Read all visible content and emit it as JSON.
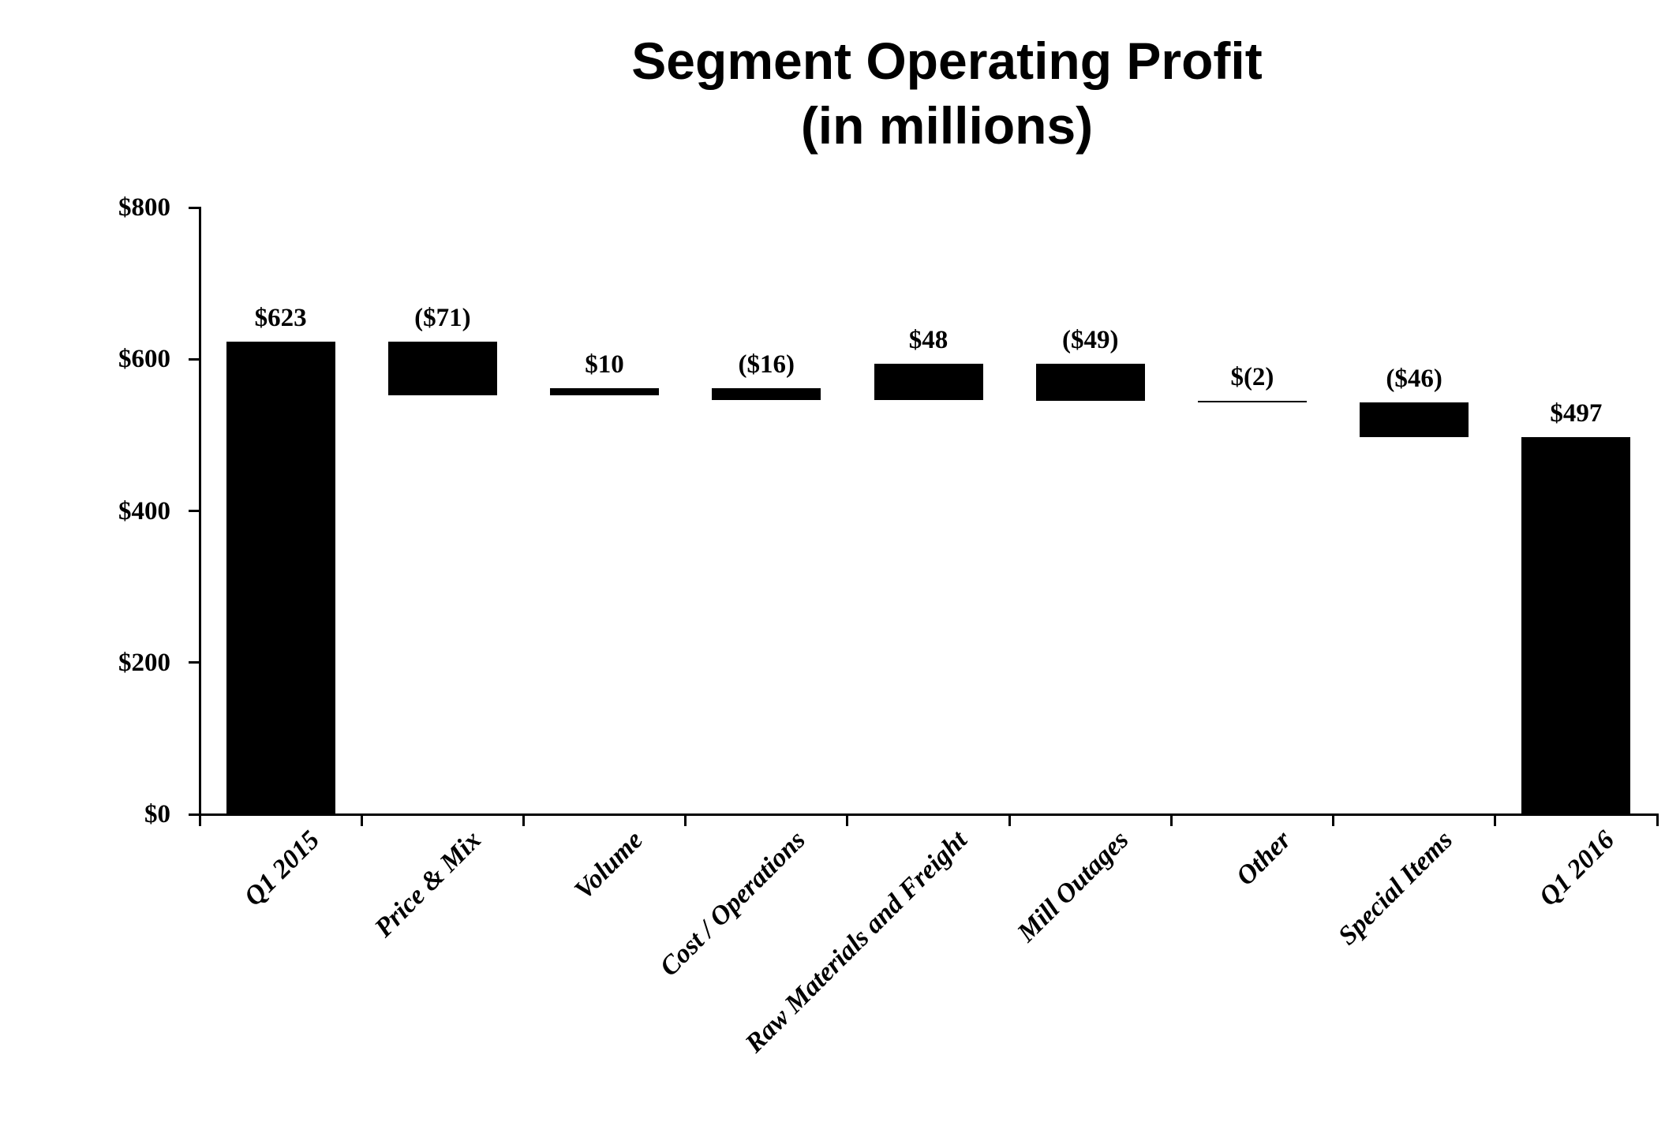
{
  "title": {
    "line1": "Segment Operating Profit",
    "line2": "(in millions)"
  },
  "colors": {
    "bar": "#000000",
    "axis": "#000000",
    "text": "#000000",
    "background": "#ffffff"
  },
  "chart_data": {
    "type": "bar",
    "subtype": "waterfall",
    "title": "Segment Operating Profit (in millions)",
    "xlabel": "",
    "ylabel": "",
    "categories": [
      "Q1 2015",
      "Price & Mix",
      "Volume",
      "Cost / Operations",
      "Raw Materials and Freight",
      "Mill Outages",
      "Other",
      "Special Items",
      "Q1 2016"
    ],
    "values": [
      623,
      -71,
      10,
      -16,
      48,
      -49,
      -2,
      -46,
      497
    ],
    "value_labels": [
      "$623",
      "($71)",
      "$10",
      "($16)",
      "$48",
      "($49)",
      "$(2)",
      "($46)",
      "$497"
    ],
    "bar_kind": [
      "total",
      "delta",
      "delta",
      "delta",
      "delta",
      "delta",
      "delta",
      "delta",
      "total"
    ],
    "segment_start": [
      0,
      623,
      552,
      562,
      546,
      594,
      545,
      543,
      0
    ],
    "segment_end": [
      623,
      552,
      562,
      546,
      594,
      545,
      543,
      497,
      497
    ],
    "ylim": [
      0,
      800
    ],
    "ytick_values": [
      0,
      200,
      400,
      600,
      800
    ],
    "yticks": [
      "$0",
      "$200",
      "$400",
      "$600",
      "$800"
    ],
    "grid": false,
    "legend": false,
    "bar_color": "#000000"
  }
}
